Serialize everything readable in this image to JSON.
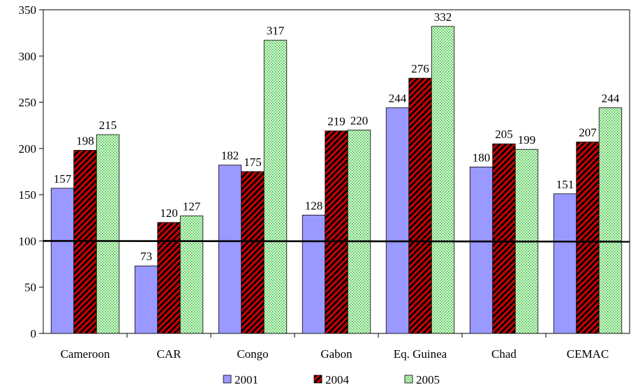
{
  "chart_data": {
    "type": "bar",
    "title": "",
    "xlabel": "",
    "ylabel": "",
    "categories": [
      "Cameroon",
      "CAR",
      "Congo",
      "Gabon",
      "Eq. Guinea",
      "Chad",
      "CEMAC"
    ],
    "series": [
      {
        "name": "2001",
        "values": [
          157,
          73,
          182,
          128,
          244,
          180,
          151
        ],
        "color": "#9999ff",
        "pattern": "solid"
      },
      {
        "name": "2004",
        "values": [
          198,
          120,
          175,
          219,
          276,
          205,
          207
        ],
        "color": "#990000",
        "pattern": "diagonal-stripes"
      },
      {
        "name": "2005",
        "values": [
          215,
          127,
          317,
          220,
          332,
          199,
          244
        ],
        "color": "#ccffcc",
        "pattern": "dots"
      }
    ],
    "ylim": [
      0,
      350
    ],
    "yticks": [
      0,
      50,
      100,
      150,
      200,
      250,
      300,
      350
    ],
    "reference_line": {
      "value": 100,
      "color": "#000000"
    },
    "grid": false,
    "legend": "bottom-center"
  }
}
